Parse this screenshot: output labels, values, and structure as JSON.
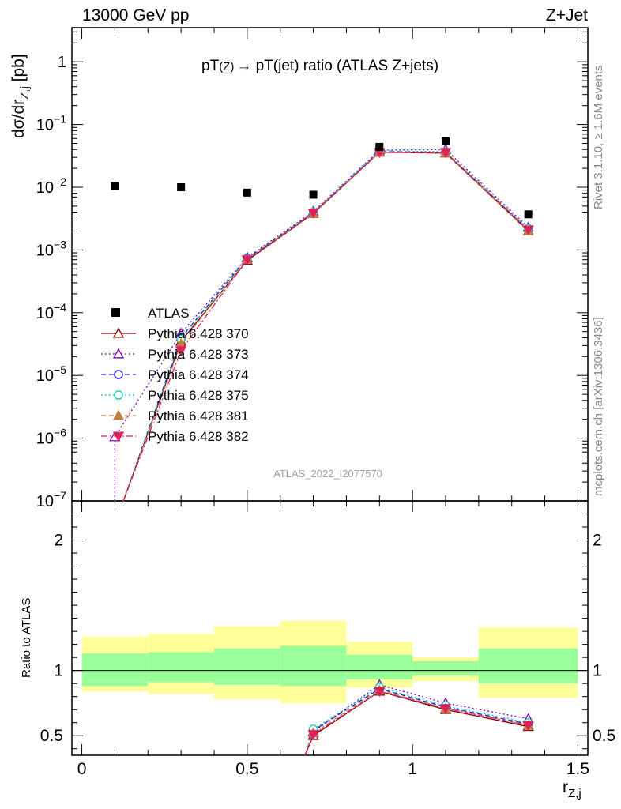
{
  "header": {
    "energy_label": "13000 GeV pp",
    "process_label": "Z+Jet"
  },
  "side": {
    "rivet_label": "Rivet 3.1.10, ≥ 1.6M events",
    "mcplots_label": "mcplots.cern.ch [arXiv:1306.3436]"
  },
  "chart_data": {
    "type": "scatter",
    "title_main": "pT",
    "title_sub": "(Z)",
    "title_arrow": "→",
    "title_rest": " pT(jet) ratio (ATLAS Z+jets)",
    "analysis_id": "ATLAS_2022_I2077570",
    "ylabel_main": "dσ/dr",
    "ylabel_sub": "Z,j",
    "ylabel_unit": " [pb]",
    "xlabel_main": "r",
    "xlabel_sub": "Z,j",
    "ratio_ylabel": "Ratio to ATLAS",
    "xlim": [
      -0.03,
      1.53
    ],
    "ylim_main": [
      1e-07,
      3.5
    ],
    "yscale_main": "log",
    "ylim_ratio": [
      0.35,
      2.3
    ],
    "x_ticks": [
      "0",
      "0.5",
      "1",
      "1.5"
    ],
    "y_main_ticks": [
      {
        "base": "10",
        "exp": "−7"
      },
      {
        "base": "10",
        "exp": "−6"
      },
      {
        "base": "10",
        "exp": "−5"
      },
      {
        "base": "10",
        "exp": "−4"
      },
      {
        "base": "10",
        "exp": "−3"
      },
      {
        "base": "10",
        "exp": "−2"
      },
      {
        "base": "10",
        "exp": "−1"
      },
      {
        "base": "1",
        "exp": ""
      }
    ],
    "y_ratio_ticks": [
      "0.5",
      "1",
      "2"
    ],
    "x": [
      0.1,
      0.3,
      0.5,
      0.7,
      0.9,
      1.1,
      1.35
    ],
    "bin_edges": [
      0.0,
      0.2,
      0.4,
      0.6,
      0.8,
      1.0,
      1.2,
      1.5
    ],
    "atlas": {
      "name": "ATLAS",
      "color": "#000000",
      "values": [
        0.0105,
        0.01,
        0.0082,
        0.0076,
        0.044,
        0.054,
        0.0037
      ]
    },
    "band_inner": [
      [
        0.88,
        1.13
      ],
      [
        0.91,
        1.14
      ],
      [
        0.89,
        1.17
      ],
      [
        0.88,
        1.19
      ],
      [
        0.93,
        1.12
      ],
      [
        0.96,
        1.07
      ],
      [
        0.9,
        1.17
      ]
    ],
    "band_outer": [
      [
        0.84,
        1.26
      ],
      [
        0.82,
        1.28
      ],
      [
        0.78,
        1.34
      ],
      [
        0.75,
        1.38
      ],
      [
        0.87,
        1.22
      ],
      [
        0.92,
        1.1
      ],
      [
        0.79,
        1.33
      ]
    ],
    "band_inner_color": "#99ff99",
    "band_outer_color": "#ffff99",
    "series": [
      {
        "name": "Pythia 6.428 370",
        "color": "#800000",
        "dash": "",
        "marker": "triangle-open",
        "values": [
          null,
          3.5e-05,
          0.00068,
          0.0038,
          0.036,
          0.035,
          0.002
        ],
        "ratio": [
          null,
          null,
          null,
          0.5,
          0.84,
          0.7,
          0.57
        ]
      },
      {
        "name": "Pythia 6.428 373",
        "color": "#8000c0",
        "dash": "2,3",
        "marker": "triangle-open",
        "values": [
          1.05e-06,
          4.7e-05,
          0.00076,
          0.0041,
          0.039,
          0.04,
          0.0023
        ],
        "ratio": [
          null,
          null,
          null,
          0.53,
          0.89,
          0.75,
          0.63
        ]
      },
      {
        "name": "Pythia 6.428 374",
        "color": "#2020e0",
        "dash": "6,4",
        "marker": "circle-open",
        "values": [
          null,
          4e-05,
          0.00074,
          0.0039,
          0.037,
          0.036,
          0.0021
        ],
        "ratio": [
          null,
          null,
          null,
          0.54,
          0.86,
          0.72,
          0.59
        ]
      },
      {
        "name": "Pythia 6.428 375",
        "color": "#00d0b0",
        "dash": "2,3",
        "marker": "circle-open",
        "values": [
          null,
          3.8e-05,
          0.00073,
          0.004,
          0.038,
          0.037,
          0.0022
        ],
        "ratio": [
          null,
          null,
          null,
          0.55,
          0.87,
          0.73,
          0.6
        ]
      },
      {
        "name": "Pythia 6.428 381",
        "color": "#c08040",
        "dash": "6,4",
        "marker": "triangle-filled",
        "values": [
          null,
          3.2e-05,
          0.00071,
          0.0038,
          0.036,
          0.0355,
          0.002
        ],
        "ratio": [
          null,
          null,
          null,
          0.52,
          0.85,
          0.71,
          0.58
        ]
      },
      {
        "name": "Pythia 6.428 382",
        "color": "#e0205a",
        "dash": "8,3,2,3",
        "marker": "triangle-down-filled",
        "values": [
          null,
          2.5e-05,
          0.0007,
          0.0039,
          0.036,
          0.036,
          0.0021
        ],
        "ratio": [
          null,
          null,
          null,
          0.51,
          0.84,
          0.71,
          0.58
        ]
      }
    ]
  }
}
